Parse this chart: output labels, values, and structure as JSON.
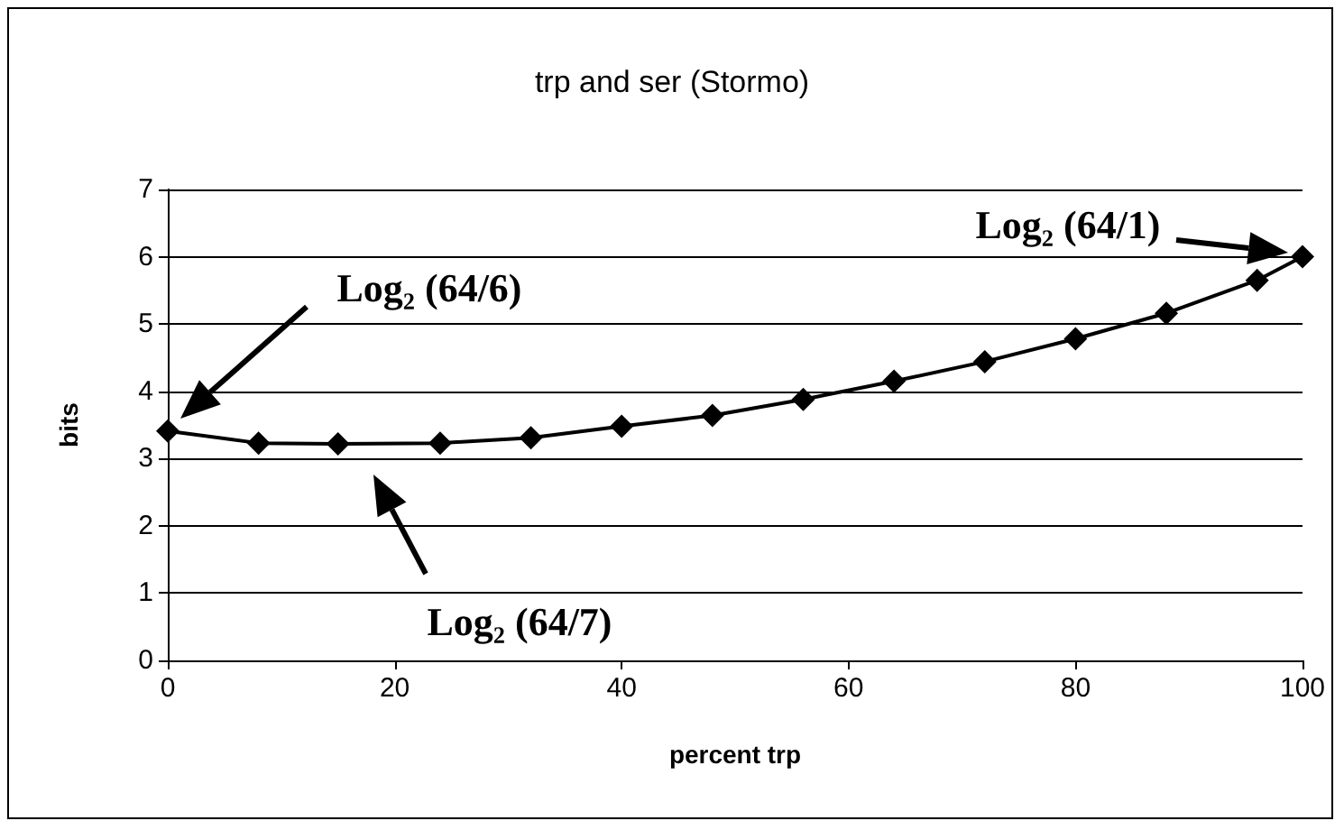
{
  "chart_data": {
    "type": "line",
    "title": "trp and ser (Stormo)",
    "xlabel": "percent trp",
    "ylabel": "bits",
    "x": [
      0,
      8,
      15,
      24,
      32,
      40,
      48,
      56,
      64,
      72,
      80,
      88,
      96,
      100
    ],
    "series": [
      {
        "color": "#000000",
        "values": [
          3.41,
          3.23,
          3.22,
          3.23,
          3.31,
          3.48,
          3.64,
          3.88,
          4.15,
          4.44,
          4.78,
          5.16,
          5.65,
          6.0
        ]
      }
    ],
    "xlim": [
      0,
      100
    ],
    "xticks": [
      0,
      20,
      40,
      60,
      80,
      100
    ],
    "ylim": [
      0,
      7
    ],
    "yticks": [
      0,
      1,
      2,
      3,
      4,
      5,
      6,
      7
    ],
    "grid": "y",
    "marker": "diamond",
    "line_style": "solid",
    "annotations": [
      "Log₂ (64/6)",
      "Log₂ (64/7)",
      "Log₂ (64/1)"
    ]
  }
}
